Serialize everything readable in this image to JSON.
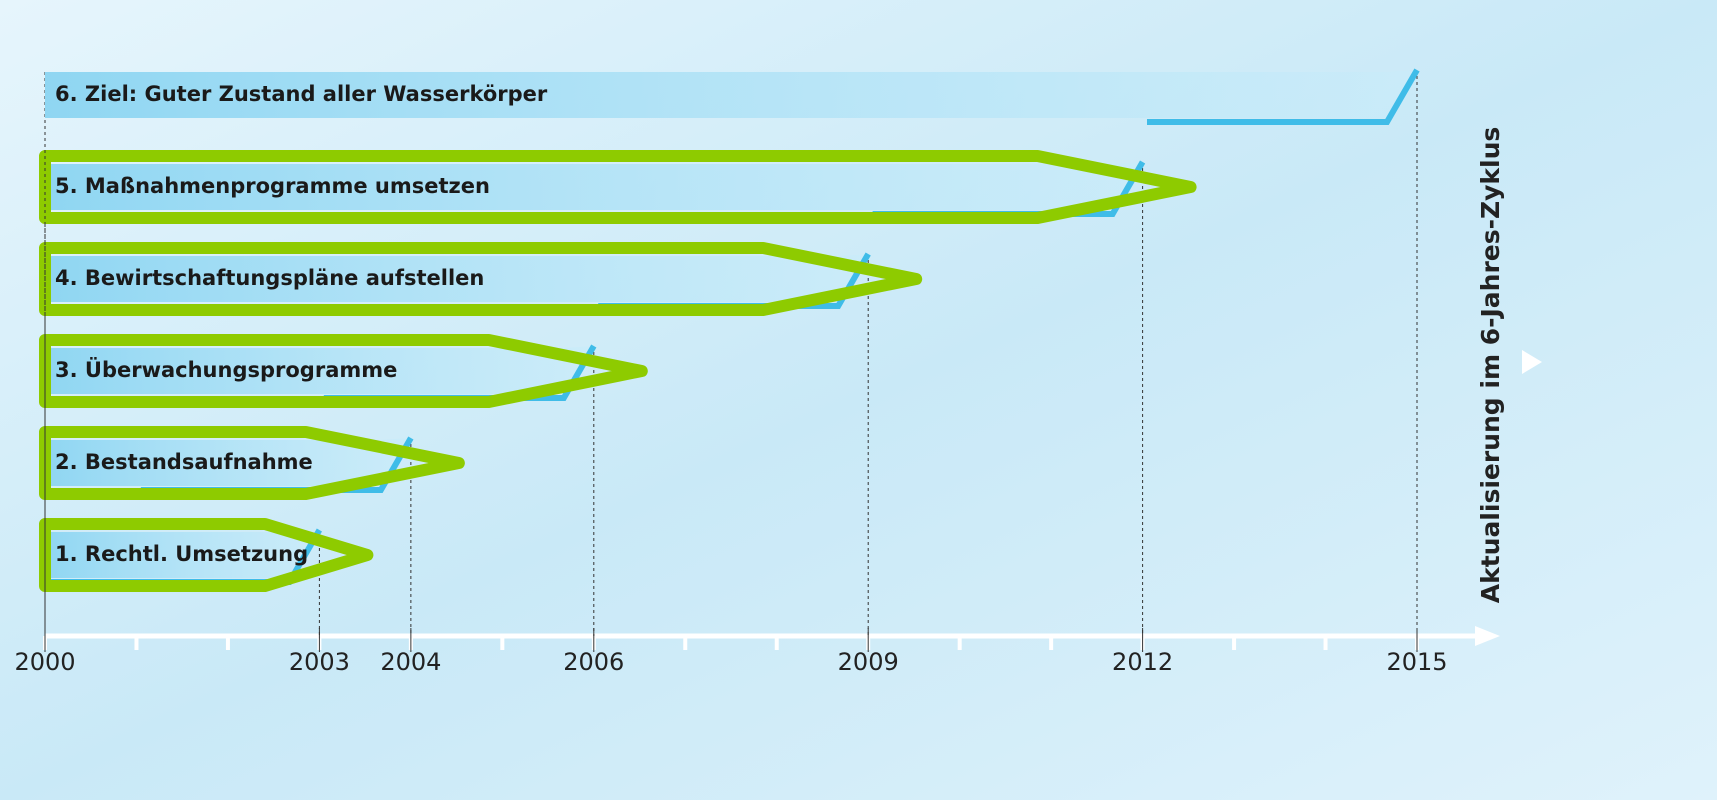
{
  "chart_data": {
    "type": "timeline",
    "categories": [
      "1. Rechtl. Umsetzung",
      "2. Bestandsaufnahme",
      "3. Überwachungsprogramme",
      "4. Bewirtschaftungspläne aufstellen",
      "5. Maßnahmenprogramme umsetzen",
      "6. Ziel: Guter Zustand aller Wasserkörper"
    ],
    "start": [
      2000,
      2000,
      2000,
      2000,
      2000,
      2000
    ],
    "end": [
      2003,
      2004,
      2006,
      2009,
      2012,
      2015
    ],
    "highlighted": [
      true,
      true,
      true,
      true,
      true,
      false
    ],
    "xlim": [
      2000,
      2015
    ],
    "xticks": [
      2000,
      2003,
      2004,
      2006,
      2009,
      2012,
      2015
    ],
    "side_label": "Aktualisierung im 6-Jahres-Zyklus",
    "bar_color": "#8fd6f2",
    "line_color": "#3fbce8",
    "highlight_color": "#8ecb00"
  }
}
